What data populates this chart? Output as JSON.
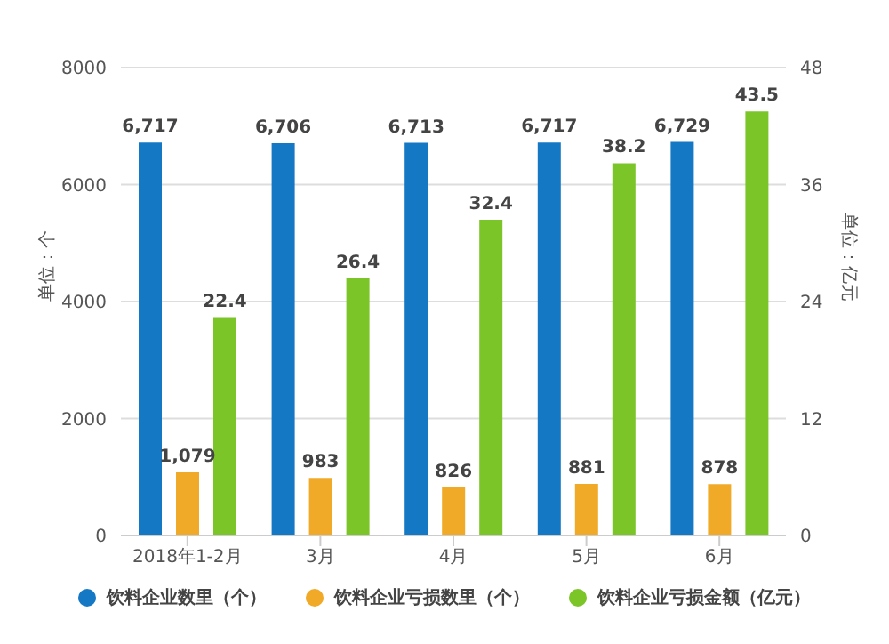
{
  "chart_data": {
    "type": "bar",
    "categories": [
      "2018年1-2月",
      "3月",
      "4月",
      "5月",
      "6月"
    ],
    "ylabel": "单位：个",
    "y2label": "单位：亿元",
    "series": [
      {
        "name": "饮料企业数里（个）",
        "color": "#1478c4",
        "values": [
          6717,
          6706,
          6713,
          6717,
          6729
        ],
        "value_labels": [
          "6,717",
          "6,706",
          "6,713",
          "6,717",
          "6,729"
        ]
      },
      {
        "name": "饮料企业亏损数里（个）",
        "color": "#f0aa28",
        "values": [
          1079,
          983,
          826,
          881,
          878
        ],
        "value_labels": [
          "1,079",
          "983",
          "826",
          "881",
          "878"
        ]
      },
      {
        "name": "饮料企业亏损金额（亿元）",
        "color": "#7cc528",
        "values": [
          22.4,
          26.4,
          32.4,
          38.2,
          43.5
        ],
        "value_labels": [
          "22.4",
          "26.4",
          "32.4",
          "38.2",
          "43.5"
        ],
        "axis": "y2"
      }
    ],
    "ylim": [
      0,
      8000
    ],
    "yticks": [
      0,
      2000,
      4000,
      6000,
      8000
    ],
    "y2lim": [
      0,
      48
    ],
    "y2ticks": [
      0,
      12,
      24,
      36,
      48
    ],
    "grid": "y",
    "legend": "bottom"
  }
}
